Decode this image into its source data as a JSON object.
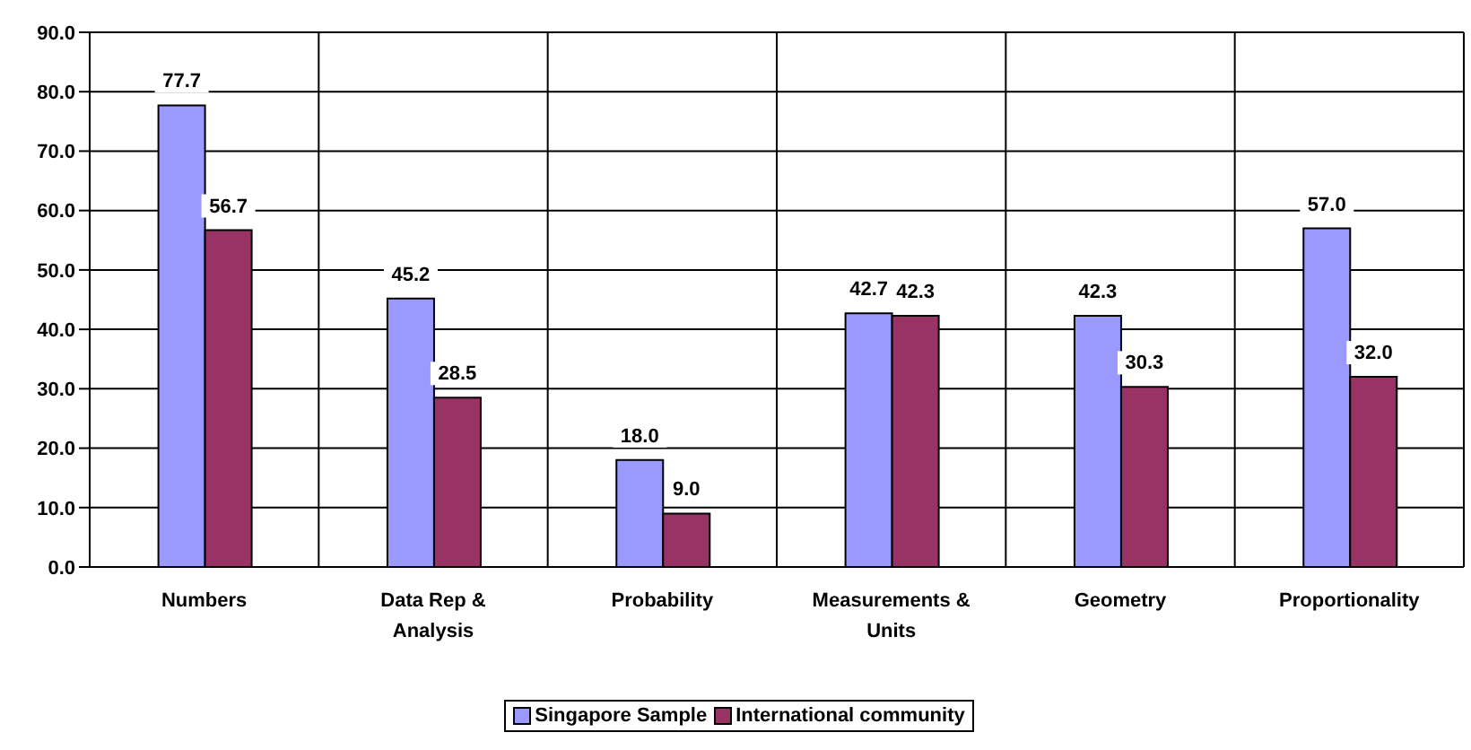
{
  "chart_data": {
    "type": "bar",
    "categories": [
      "Numbers",
      "Data Rep & Analysis",
      "Probability",
      "Measurements & Units",
      "Geometry",
      "Proportionality"
    ],
    "series": [
      {
        "name": "Singapore Sample",
        "color": "#9999ff",
        "values": [
          77.7,
          45.2,
          18.0,
          42.7,
          42.3,
          57.0
        ],
        "value_labels": [
          "77.7",
          "45.2",
          "18.0",
          "42.7",
          "42.3",
          "57.0"
        ]
      },
      {
        "name": "International community",
        "color": "#993366",
        "values": [
          56.7,
          28.5,
          9.0,
          42.3,
          30.3,
          32.0
        ],
        "value_labels": [
          "56.7",
          "28.5",
          "9.0",
          "42.3",
          "30.3",
          "32.0"
        ]
      }
    ],
    "ylim": [
      0,
      90
    ],
    "yticks": [
      {
        "value": 0,
        "label": "0.0"
      },
      {
        "value": 10,
        "label": "10.0"
      },
      {
        "value": 20,
        "label": "20.0"
      },
      {
        "value": 30,
        "label": "30.0"
      },
      {
        "value": 40,
        "label": "40.0"
      },
      {
        "value": 50,
        "label": "50.0"
      },
      {
        "value": 60,
        "label": "60.0"
      },
      {
        "value": 70,
        "label": "70.0"
      },
      {
        "value": 80,
        "label": "80.0"
      },
      {
        "value": 90,
        "label": "90.0"
      }
    ],
    "grid": true,
    "legend": "bottom"
  }
}
